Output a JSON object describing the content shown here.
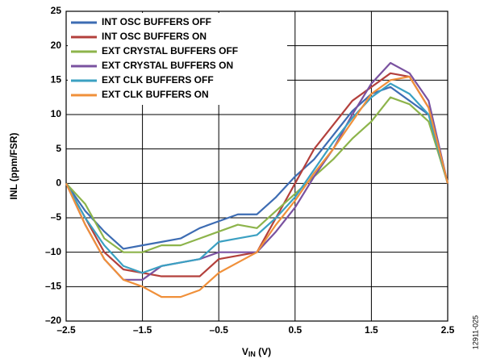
{
  "chart_data": {
    "type": "line",
    "xlabel": {
      "main": "V",
      "sub": "IN",
      "unit": " (V)"
    },
    "ylabel": "INL (ppm/FSR)",
    "figure_id": "12911-025",
    "x": [
      -2.5,
      -2.25,
      -2,
      -1.75,
      -1.5,
      -1.25,
      -1,
      -0.75,
      -0.5,
      -0.25,
      0,
      0.25,
      0.5,
      0.75,
      1,
      1.25,
      1.5,
      1.75,
      2,
      2.25,
      2.5
    ],
    "series": [
      {
        "name": "INT OSC BUFFERS OFF",
        "color": "#3d6cb3",
        "values": [
          0,
          -4,
          -7,
          -9.5,
          -9,
          -8.5,
          -8,
          -6.5,
          -5.5,
          -4.5,
          -4.5,
          -2,
          1,
          3.5,
          7,
          10.5,
          13,
          14,
          12,
          10,
          0
        ]
      },
      {
        "name": "INT OSC BUFFERS ON",
        "color": "#b3403c",
        "values": [
          0,
          -5,
          -10,
          -12.5,
          -13,
          -13.5,
          -13.5,
          -13.5,
          -11,
          -10.5,
          -10,
          -5,
          0,
          5,
          8.5,
          12,
          14,
          16,
          15.5,
          11,
          0
        ]
      },
      {
        "name": "EXT CRYSTAL BUFFERS OFF",
        "color": "#8db44b",
        "values": [
          0,
          -3,
          -8,
          -10,
          -10,
          -9,
          -9,
          -8,
          -7,
          -6,
          -6.5,
          -4,
          -1.5,
          1,
          3.5,
          6.5,
          9,
          12.5,
          11.5,
          9,
          0
        ]
      },
      {
        "name": "EXT CRYSTAL BUFFERS ON",
        "color": "#7a52a0",
        "values": [
          0,
          -6,
          -11,
          -14,
          -14,
          -12,
          -11.5,
          -11,
          -10,
          -10,
          -10,
          -7,
          -3.5,
          1,
          5,
          10,
          14.5,
          17.5,
          16,
          12,
          0
        ]
      },
      {
        "name": "EXT CLK BUFFERS OFF",
        "color": "#3ba0c2",
        "values": [
          0,
          -5,
          -9,
          -12,
          -13,
          -12,
          -11.5,
          -11,
          -8.5,
          -8,
          -7.5,
          -5,
          -2,
          2,
          6,
          9.5,
          12.5,
          14.5,
          13,
          10,
          0
        ]
      },
      {
        "name": "EXT CLK BUFFERS ON",
        "color": "#f0903a",
        "values": [
          0,
          -6,
          -11,
          -14,
          -15,
          -16.5,
          -16.5,
          -15.5,
          -13,
          -11.5,
          -10,
          -6,
          -2.5,
          1.5,
          5,
          9,
          13,
          15,
          15.5,
          11,
          0
        ]
      }
    ],
    "xlim": [
      -2.5,
      2.5
    ],
    "xticks": [
      {
        "value": -2.5,
        "label": "–2.5"
      },
      {
        "value": -1.5,
        "label": "–1.5"
      },
      {
        "value": -0.5,
        "label": "–0.5"
      },
      0.5,
      1.5,
      2.5
    ],
    "ylim": [
      -20,
      25
    ],
    "yticks": [
      {
        "value": -20,
        "label": "–20"
      },
      {
        "value": -15,
        "label": "–15"
      },
      {
        "value": -10,
        "label": "–10"
      },
      {
        "value": -5,
        "label": "–5"
      },
      0,
      5,
      10,
      15,
      20,
      25
    ],
    "grid": true,
    "legend": "upper-left"
  }
}
